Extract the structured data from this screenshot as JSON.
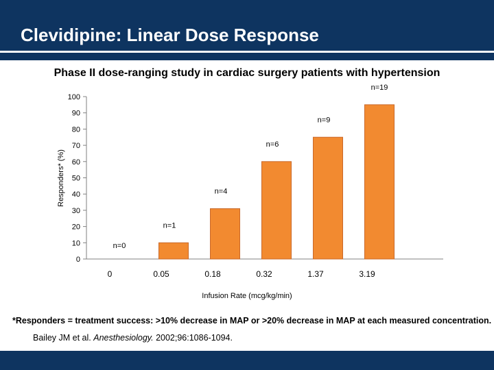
{
  "slide": {
    "title": "Clevidipine: Linear Dose Response",
    "subtitle": "Phase II dose-ranging study in cardiac surgery patients with hypertension",
    "footnote": "*Responders = treatment success: >10% decrease in MAP or >20% decrease in MAP at each measured concentration.",
    "citation": {
      "authors": "Bailey JM et al.",
      "journal": "Anesthesiology.",
      "details": "2002;96:1086-1094."
    }
  },
  "colors": {
    "header_bg": "#0e3460",
    "bar_fill": "#f28a30",
    "bar_stroke": "#c9692a",
    "axis": "#808080"
  },
  "chart_data": {
    "type": "bar",
    "title": "Phase II dose-ranging study in cardiac surgery patients with hypertension",
    "xlabel": "Infusion Rate (mcg/kg/min)",
    "ylabel": "Responders* (%)",
    "ylim": [
      0,
      100
    ],
    "yticks": [
      0,
      10,
      20,
      30,
      40,
      50,
      60,
      70,
      80,
      90,
      100
    ],
    "categories": [
      "0",
      "0.05",
      "0.18",
      "0.32",
      "1.37",
      "3.19"
    ],
    "values": [
      0,
      10,
      31,
      60,
      75,
      95
    ],
    "data_labels": [
      "n=0",
      "n=1",
      "n=4",
      "n=6",
      "n=9",
      "n=19"
    ],
    "grid": false,
    "legend": "none"
  }
}
